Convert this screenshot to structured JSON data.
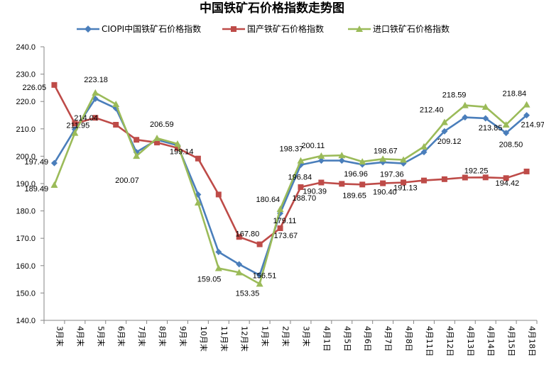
{
  "chart_data": {
    "type": "line",
    "title": "中国铁矿石价格指数走势图",
    "xlabel": "",
    "ylabel": "",
    "ylim": [
      140,
      240
    ],
    "y_ticks": [
      "140.0",
      "150.0",
      "160.0",
      "170.0",
      "180.0",
      "190.0",
      "200.0",
      "210.0",
      "220.0",
      "230.0",
      "240.0"
    ],
    "categories": [
      "3月末",
      "4月末",
      "5月末",
      "6月末",
      "7月末",
      "8月末",
      "9月末",
      "10月末",
      "11月末",
      "12月末",
      "1月末",
      "2月末",
      "3月末",
      "4月1日",
      "4月5日",
      "4月6日",
      "4月7日",
      "4月8日",
      "4月11日",
      "4月12日",
      "4月13日",
      "4月14日",
      "4月15日",
      "4月18日"
    ],
    "legend_position": "top",
    "grid": false,
    "series": [
      {
        "name": "CIOPI中国铁矿石价格指数",
        "color": "#4a7ebb",
        "marker": "diamond",
        "values": [
          197.49,
          209.8,
          221.0,
          217.5,
          201.5,
          206.0,
          204.0,
          186.0,
          165.0,
          160.5,
          156.51,
          179.11,
          196.84,
          198.4,
          198.4,
          196.96,
          197.8,
          197.36,
          201.5,
          209.12,
          214.2,
          213.85,
          208.5,
          214.97
        ]
      },
      {
        "name": "国产铁矿石价格指数",
        "color": "#be4b48",
        "marker": "square",
        "values": [
          226.05,
          211.95,
          214.04,
          211.5,
          206.0,
          205.0,
          203.0,
          199.14,
          186.0,
          170.5,
          167.8,
          173.67,
          188.7,
          190.39,
          189.9,
          189.65,
          190.1,
          190.4,
          191.13,
          191.6,
          192.2,
          192.25,
          192.0,
          194.42
        ]
      },
      {
        "name": "进口铁矿石价格指数",
        "color": "#9bbb59",
        "marker": "triangle",
        "values": [
          189.49,
          208.5,
          223.18,
          219.0,
          200.07,
          206.59,
          204.5,
          183.0,
          159.05,
          157.5,
          153.35,
          180.64,
          198.37,
          200.11,
          200.3,
          198.0,
          199.0,
          198.67,
          203.5,
          212.4,
          218.59,
          218.0,
          211.5,
          218.84
        ]
      }
    ],
    "data_labels": [
      {
        "series": 0,
        "index": 0,
        "text": "197.49"
      },
      {
        "series": 0,
        "index": 10,
        "text": "156.51"
      },
      {
        "series": 0,
        "index": 11,
        "text": "179.11"
      },
      {
        "series": 0,
        "index": 12,
        "text": "196.84"
      },
      {
        "series": 0,
        "index": 15,
        "text": "196.96"
      },
      {
        "series": 0,
        "index": 17,
        "text": "197.36"
      },
      {
        "series": 0,
        "index": 19,
        "text": "209.12"
      },
      {
        "series": 0,
        "index": 21,
        "text": "213.85"
      },
      {
        "series": 0,
        "index": 22,
        "text": "208.50"
      },
      {
        "series": 0,
        "index": 23,
        "text": "214.97"
      },
      {
        "series": 1,
        "index": 0,
        "text": "226.05"
      },
      {
        "series": 1,
        "index": 1,
        "text": "211.95"
      },
      {
        "series": 1,
        "index": 2,
        "text": "214.04"
      },
      {
        "series": 1,
        "index": 7,
        "text": "199.14"
      },
      {
        "series": 1,
        "index": 10,
        "text": "167.80"
      },
      {
        "series": 1,
        "index": 11,
        "text": "173.67"
      },
      {
        "series": 1,
        "index": 12,
        "text": "188.70"
      },
      {
        "series": 1,
        "index": 13,
        "text": "190.39"
      },
      {
        "series": 1,
        "index": 15,
        "text": "189.65"
      },
      {
        "series": 1,
        "index": 17,
        "text": "190.40"
      },
      {
        "series": 1,
        "index": 18,
        "text": "191.13"
      },
      {
        "series": 1,
        "index": 21,
        "text": "192.25"
      },
      {
        "series": 1,
        "index": 23,
        "text": "194.42"
      },
      {
        "series": 2,
        "index": 0,
        "text": "189.49"
      },
      {
        "series": 2,
        "index": 2,
        "text": "223.18"
      },
      {
        "series": 2,
        "index": 4,
        "text": "200.07"
      },
      {
        "series": 2,
        "index": 5,
        "text": "206.59"
      },
      {
        "series": 2,
        "index": 8,
        "text": "159.05"
      },
      {
        "series": 2,
        "index": 10,
        "text": "153.35"
      },
      {
        "series": 2,
        "index": 11,
        "text": "180.64"
      },
      {
        "series": 2,
        "index": 12,
        "text": "198.37"
      },
      {
        "series": 2,
        "index": 13,
        "text": "200.11"
      },
      {
        "series": 2,
        "index": 17,
        "text": "198.67"
      },
      {
        "series": 2,
        "index": 19,
        "text": "212.40"
      },
      {
        "series": 2,
        "index": 20,
        "text": "218.59"
      },
      {
        "series": 2,
        "index": 23,
        "text": "218.84"
      }
    ]
  }
}
